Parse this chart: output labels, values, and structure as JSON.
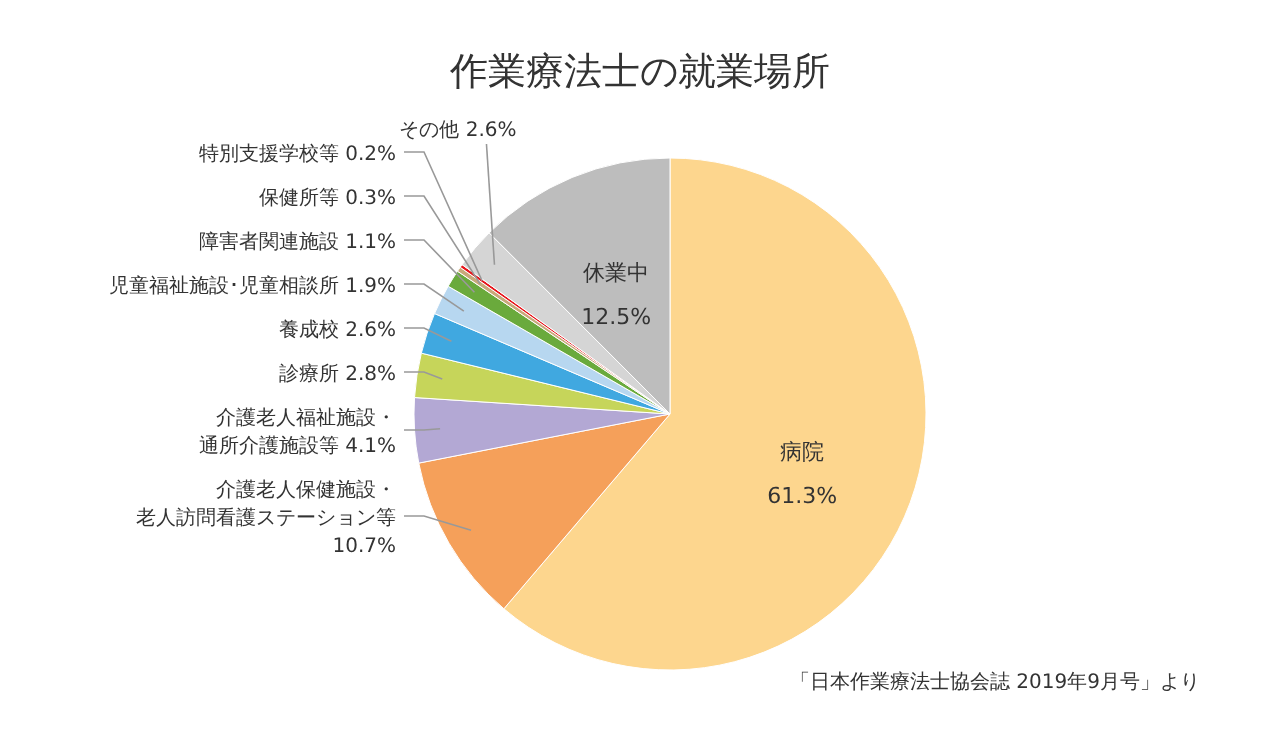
{
  "chart_data": {
    "type": "pie",
    "title": "作業療法士の就業場所",
    "categories": [
      "病院",
      "介護老人保健施設・老人訪問看護ステーション等",
      "介護老人福祉施設・通所介護施設等",
      "診療所",
      "養成校",
      "児童福祉施設･児童相談所",
      "障害者関連施設",
      "保健所等",
      "特別支援学校等",
      "その他",
      "休業中"
    ],
    "values": [
      61.3,
      10.7,
      4.1,
      2.8,
      2.6,
      1.9,
      1.1,
      0.3,
      0.2,
      2.6,
      12.5
    ],
    "value_labels": [
      "61.3%",
      "10.7%",
      "4.1%",
      "2.8%",
      "2.6%",
      "1.9%",
      "1.1%",
      "0.3%",
      "0.2%",
      "2.6%",
      "12.5%"
    ],
    "colors": [
      "#fdd68e",
      "#f5a05a",
      "#b3a8d4",
      "#c6d55a",
      "#40a8e0",
      "#b7d7f0",
      "#6aaa3c",
      "#c9a97a",
      "#e8141a",
      "#d5d5d5",
      "#bdbdbd"
    ],
    "annotations": [
      "「日本作業療法士協会誌 2019年9月号」より"
    ]
  }
}
